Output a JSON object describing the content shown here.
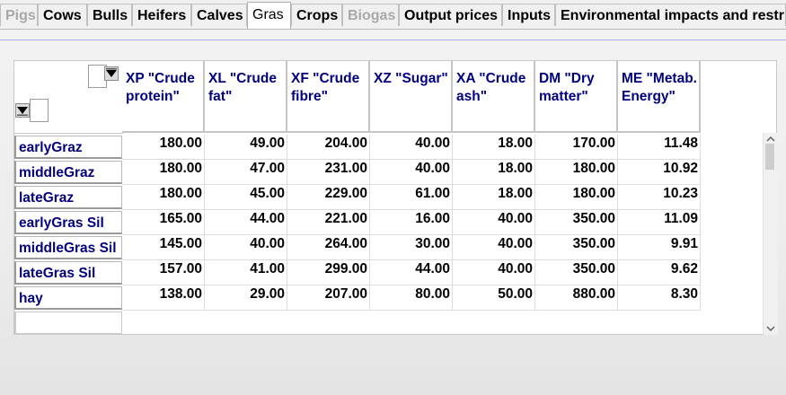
{
  "tabs": [
    {
      "label": "Pigs",
      "state": "disabled"
    },
    {
      "label": "Cows",
      "state": "normal"
    },
    {
      "label": "Bulls",
      "state": "normal"
    },
    {
      "label": "Heifers",
      "state": "normal"
    },
    {
      "label": "Calves",
      "state": "normal"
    },
    {
      "label": "Gras",
      "state": "active"
    },
    {
      "label": "Crops",
      "state": "normal"
    },
    {
      "label": "Biogas",
      "state": "disabled"
    },
    {
      "label": "Output prices",
      "state": "normal"
    },
    {
      "label": "Inputs",
      "state": "normal"
    },
    {
      "label": "Environmental impacts and restri",
      "state": "normal"
    }
  ],
  "table": {
    "columns": [
      "XP \"Crude protein\"",
      "XL \"Crude fat\"",
      "XF \"Crude fibre\"",
      "XZ \"Sugar\"",
      "XA \"Crude ash\"",
      "DM \"Dry matter\"",
      "ME \"Metab. Energy\""
    ],
    "rows": [
      {
        "label": "earlyGraz",
        "values": [
          "180.00",
          "49.00",
          "204.00",
          "40.00",
          "18.00",
          "170.00",
          "11.48"
        ]
      },
      {
        "label": "middleGraz",
        "values": [
          "180.00",
          "47.00",
          "231.00",
          "40.00",
          "18.00",
          "180.00",
          "10.92"
        ]
      },
      {
        "label": "lateGraz",
        "values": [
          "180.00",
          "45.00",
          "229.00",
          "61.00",
          "18.00",
          "180.00",
          "10.23"
        ]
      },
      {
        "label": "earlyGras Sil",
        "values": [
          "165.00",
          "44.00",
          "221.00",
          "16.00",
          "40.00",
          "350.00",
          "11.09"
        ]
      },
      {
        "label": "middleGras Sil",
        "values": [
          "145.00",
          "40.00",
          "264.00",
          "30.00",
          "40.00",
          "350.00",
          "9.91"
        ]
      },
      {
        "label": "lateGras Sil",
        "values": [
          "157.00",
          "41.00",
          "299.00",
          "44.00",
          "40.00",
          "350.00",
          "9.62"
        ]
      },
      {
        "label": "hay",
        "values": [
          "138.00",
          "29.00",
          "207.00",
          "80.00",
          "50.00",
          "880.00",
          "8.30"
        ]
      }
    ]
  },
  "icons": {
    "column_filter": "filter-dropdown-icon",
    "row_filter": "filter-dropdown-icon",
    "scroll_up": "chevron-up-icon",
    "scroll_down": "chevron-down-icon"
  },
  "colors": {
    "header_text": "#000080",
    "disabled_tab_text": "#a8a8a8",
    "separator_line": "#a9a9f0"
  }
}
